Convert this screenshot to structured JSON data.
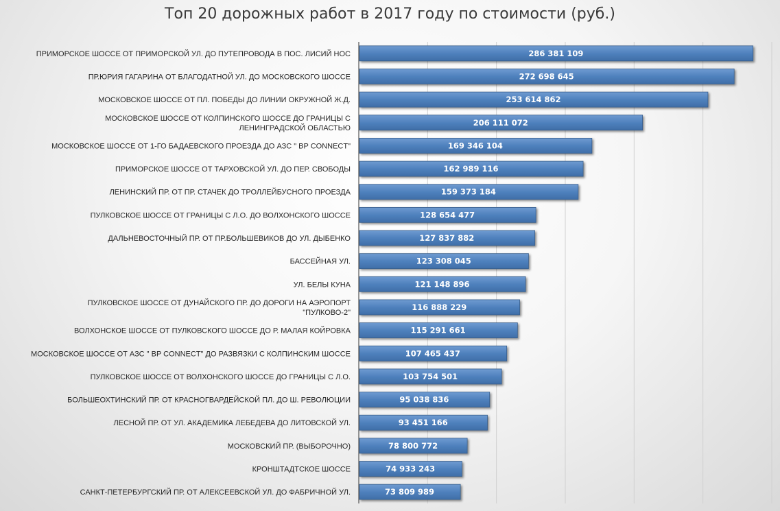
{
  "chart_data": {
    "type": "bar",
    "orientation": "horizontal",
    "title": "Топ 20 дорожных работ в 2017 году по стоимости (руб.)",
    "xlabel": "",
    "ylabel": "",
    "xlim": [
      0,
      300000000
    ],
    "grid": true,
    "legend": "none",
    "bar_color": "#4F81BD",
    "categories": [
      "ПРИМОРСКОЕ ШОССЕ ОТ ПРИМОРСКОЙ УЛ. ДО ПУТЕПРОВОДА В ПОС. ЛИСИЙ НОС",
      "ПР.ЮРИЯ ГАГАРИНА ОТ БЛАГОДАТНОЙ УЛ. ДО МОСКОВСКОГО ШОССЕ",
      "МОСКОВСКОЕ ШОССЕ ОТ ПЛ. ПОБЕДЫ ДО ЛИНИИ ОКРУЖНОЙ Ж.Д.",
      "МОСКОВСКОЕ ШОССЕ ОТ КОЛПИНСКОГО ШОССЕ ДО ГРАНИЦЫ С ЛЕНИНГРАДСКОЙ ОБЛАСТЬЮ",
      "МОСКОВСКОЕ ШОССЕ  ОТ 1-ГО БАДАЕВСКОГО ПРОЕЗДА ДО  АЗС \" BP CONNECT\"",
      "ПРИМОРСКОЕ ШОССЕ ОТ ТАРХОВСКОЙ УЛ. ДО ПЕР. СВОБОДЫ",
      "ЛЕНИНСКИЙ ПР. ОТ ПР. СТАЧЕК ДО ТРОЛЛЕЙБУСНОГО ПРОЕЗДА",
      "ПУЛКОВСКОЕ ШОССЕ ОТ ГРАНИЦЫ С Л.О. ДО ВОЛХОНСКОГО ШОССЕ",
      "ДАЛЬНЕВОСТОЧНЫЙ ПР. ОТ ПР.БОЛЬШЕВИКОВ ДО УЛ. ДЫБЕНКО",
      "БАССЕЙНАЯ УЛ.",
      "УЛ. БЕЛЫ КУНА",
      "ПУЛКОВСКОЕ ШОССЕ  ОТ ДУНАЙСКОГО ПР. ДО ДОРОГИ НА АЭРОПОРТ \"ПУЛКОВО-2\"",
      "ВОЛХОНСКОЕ ШОССЕ ОТ ПУЛКОВСКОГО ШОССЕ ДО Р. МАЛАЯ КОЙРОВКА",
      "МОСКОВСКОЕ ШОССЕ   ОТ АЗС \" BP CONNECT\" ДО  РАЗВЯЗКИ С КОЛПИНСКИМ ШОССЕ",
      "ПУЛКОВСКОЕ ШОССЕ ОТ ВОЛХОНСКОГО ШОССЕ ДО ГРАНИЦЫ С Л.О.",
      "БОЛЬШЕОХТИНСКИЙ ПР. ОТ КРАСНОГВАРДЕЙСКОЙ ПЛ. ДО Ш. РЕВОЛЮЦИИ",
      "ЛЕСНОЙ ПР. ОТ УЛ. АКАДЕМИКА ЛЕБЕДЕВА ДО ЛИТОВСКОЙ УЛ.",
      "МОСКОВСКИЙ ПР. (ВЫБОРОЧНО)",
      "КРОНШТАДТСКОЕ ШОССЕ",
      "САНКТ-ПЕТЕРБУРГСКИЙ ПР. ОТ АЛЕКСЕЕВСКОЙ УЛ. ДО ФАБРИЧНОЙ УЛ."
    ],
    "category_lines": [
      [
        "ПРИМОРСКОЕ ШОССЕ ОТ ПРИМОРСКОЙ УЛ. ДО ПУТЕПРОВОДА В ПОС. ЛИСИЙ НОС"
      ],
      [
        "ПР.ЮРИЯ ГАГАРИНА ОТ БЛАГОДАТНОЙ УЛ. ДО МОСКОВСКОГО ШОССЕ"
      ],
      [
        "МОСКОВСКОЕ ШОССЕ ОТ ПЛ. ПОБЕДЫ ДО ЛИНИИ ОКРУЖНОЙ Ж.Д."
      ],
      [
        "МОСКОВСКОЕ ШОССЕ ОТ КОЛПИНСКОГО ШОССЕ ДО ГРАНИЦЫ С",
        "ЛЕНИНГРАДСКОЙ ОБЛАСТЬЮ"
      ],
      [
        "МОСКОВСКОЕ ШОССЕ  ОТ 1-ГО БАДАЕВСКОГО ПРОЕЗДА ДО  АЗС \" BP CONNECT\""
      ],
      [
        "ПРИМОРСКОЕ ШОССЕ ОТ ТАРХОВСКОЙ УЛ. ДО ПЕР. СВОБОДЫ"
      ],
      [
        "ЛЕНИНСКИЙ ПР. ОТ ПР. СТАЧЕК ДО ТРОЛЛЕЙБУСНОГО ПРОЕЗДА"
      ],
      [
        "ПУЛКОВСКОЕ ШОССЕ ОТ ГРАНИЦЫ С Л.О. ДО ВОЛХОНСКОГО ШОССЕ"
      ],
      [
        "ДАЛЬНЕВОСТОЧНЫЙ ПР. ОТ ПР.БОЛЬШЕВИКОВ ДО УЛ. ДЫБЕНКО"
      ],
      [
        "БАССЕЙНАЯ УЛ."
      ],
      [
        "УЛ. БЕЛЫ КУНА"
      ],
      [
        "ПУЛКОВСКОЕ ШОССЕ  ОТ ДУНАЙСКОГО ПР. ДО ДОРОГИ НА АЭРОПОРТ",
        "\"ПУЛКОВО-2\""
      ],
      [
        "ВОЛХОНСКОЕ ШОССЕ ОТ ПУЛКОВСКОГО ШОССЕ ДО Р. МАЛАЯ КОЙРОВКА"
      ],
      [
        "МОСКОВСКОЕ ШОССЕ   ОТ АЗС \" BP CONNECT\" ДО  РАЗВЯЗКИ С КОЛПИНСКИМ ШОССЕ"
      ],
      [
        "ПУЛКОВСКОЕ ШОССЕ ОТ ВОЛХОНСКОГО ШОССЕ ДО ГРАНИЦЫ С Л.О."
      ],
      [
        "БОЛЬШЕОХТИНСКИЙ ПР. ОТ КРАСНОГВАРДЕЙСКОЙ ПЛ. ДО Ш. РЕВОЛЮЦИИ"
      ],
      [
        "ЛЕСНОЙ ПР. ОТ УЛ. АКАДЕМИКА ЛЕБЕДЕВА ДО ЛИТОВСКОЙ УЛ."
      ],
      [
        "МОСКОВСКИЙ ПР. (ВЫБОРОЧНО)"
      ],
      [
        "КРОНШТАДТСКОЕ ШОССЕ"
      ],
      [
        "САНКТ-ПЕТЕРБУРГСКИЙ ПР. ОТ АЛЕКСЕЕВСКОЙ УЛ. ДО ФАБРИЧНОЙ УЛ."
      ]
    ],
    "values": [
      286381109,
      272698645,
      253614862,
      206111072,
      169346104,
      162989116,
      159373184,
      128654477,
      127837882,
      123308045,
      121148896,
      116888229,
      115291661,
      107465437,
      103754501,
      95038836,
      93451166,
      78800772,
      74933243,
      73809989
    ],
    "data_labels": [
      "286 381 109",
      "272 698 645",
      "253 614 862",
      "206 111 072",
      "169 346 104",
      "162 989 116",
      "159 373 184",
      "128 654 477",
      "127 837 882",
      "123 308 045",
      "121 148 896",
      "116 888 229",
      "115 291 661",
      "107 465 437",
      "103 754 501",
      "95 038 836",
      "93 451 166",
      "78 800 772",
      "74 933 243",
      "73 809 989"
    ]
  }
}
